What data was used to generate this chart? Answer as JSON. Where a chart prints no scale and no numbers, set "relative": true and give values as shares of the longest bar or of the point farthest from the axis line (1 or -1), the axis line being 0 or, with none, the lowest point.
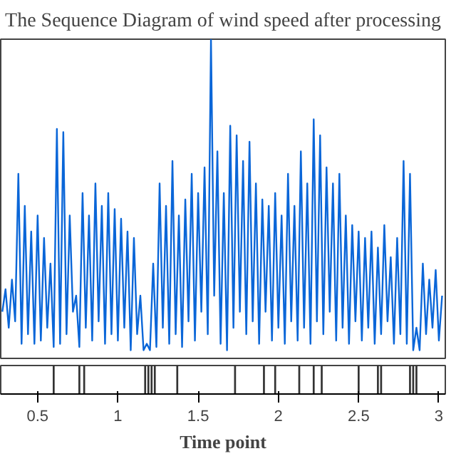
{
  "chart_data": [
    {
      "type": "line",
      "title": "The Sequence Diagram of wind speed after processing",
      "relative": true,
      "tick_labels": false,
      "xlim": [
        0.27,
        3.04
      ],
      "xticks": [
        0.5,
        1,
        1.5,
        2,
        2.5,
        3
      ],
      "x": [
        0.28,
        0.3,
        0.32,
        0.34,
        0.36,
        0.38,
        0.4,
        0.42,
        0.44,
        0.46,
        0.48,
        0.5,
        0.52,
        0.54,
        0.56,
        0.58,
        0.6,
        0.62,
        0.64,
        0.66,
        0.68,
        0.7,
        0.72,
        0.74,
        0.76,
        0.78,
        0.8,
        0.82,
        0.84,
        0.86,
        0.88,
        0.9,
        0.92,
        0.94,
        0.96,
        0.98,
        1.0,
        1.02,
        1.04,
        1.06,
        1.08,
        1.1,
        1.12,
        1.14,
        1.16,
        1.18,
        1.2,
        1.22,
        1.24,
        1.26,
        1.28,
        1.3,
        1.32,
        1.34,
        1.36,
        1.38,
        1.4,
        1.42,
        1.44,
        1.46,
        1.48,
        1.5,
        1.52,
        1.54,
        1.56,
        1.58,
        1.6,
        1.62,
        1.64,
        1.66,
        1.68,
        1.7,
        1.72,
        1.74,
        1.76,
        1.78,
        1.8,
        1.82,
        1.84,
        1.86,
        1.88,
        1.9,
        1.92,
        1.94,
        1.96,
        1.98,
        2.0,
        2.02,
        2.04,
        2.06,
        2.08,
        2.1,
        2.12,
        2.14,
        2.16,
        2.18,
        2.2,
        2.22,
        2.24,
        2.26,
        2.28,
        2.3,
        2.32,
        2.34,
        2.36,
        2.38,
        2.4,
        2.42,
        2.44,
        2.46,
        2.48,
        2.5,
        2.52,
        2.54,
        2.56,
        2.58,
        2.6,
        2.62,
        2.64,
        2.66,
        2.68,
        2.7,
        2.72,
        2.74,
        2.76,
        2.78,
        2.8,
        2.82,
        2.84,
        2.86,
        2.88,
        2.9,
        2.92,
        2.94,
        2.96,
        2.98,
        3.0,
        3.02
      ],
      "series": [
        {
          "color": "#0a66d8",
          "values": [
            0.15,
            0.22,
            0.1,
            0.25,
            0.12,
            0.58,
            0.05,
            0.48,
            0.08,
            0.4,
            0.05,
            0.45,
            0.06,
            0.38,
            0.1,
            0.3,
            0.04,
            0.72,
            0.05,
            0.71,
            0.08,
            0.45,
            0.15,
            0.2,
            0.04,
            0.52,
            0.1,
            0.45,
            0.06,
            0.55,
            0.12,
            0.48,
            0.05,
            0.52,
            0.08,
            0.47,
            0.06,
            0.44,
            0.1,
            0.4,
            0.03,
            0.38,
            0.08,
            0.2,
            0.03,
            0.05,
            0.03,
            0.3,
            0.04,
            0.55,
            0.1,
            0.48,
            0.05,
            0.62,
            0.08,
            0.45,
            0.04,
            0.5,
            0.12,
            0.58,
            0.06,
            0.52,
            0.15,
            0.6,
            0.08,
            1.0,
            0.2,
            0.65,
            0.05,
            0.52,
            0.03,
            0.73,
            0.1,
            0.7,
            0.15,
            0.62,
            0.08,
            0.68,
            0.12,
            0.55,
            0.05,
            0.5,
            0.15,
            0.48,
            0.06,
            0.52,
            0.1,
            0.45,
            0.05,
            0.58,
            0.12,
            0.48,
            0.06,
            0.65,
            0.1,
            0.55,
            0.05,
            0.75,
            0.12,
            0.7,
            0.08,
            0.6,
            0.15,
            0.55,
            0.06,
            0.58,
            0.1,
            0.45,
            0.05,
            0.42,
            0.12,
            0.4,
            0.06,
            0.38,
            0.1,
            0.4,
            0.05,
            0.35,
            0.08,
            0.42,
            0.12,
            0.32,
            0.05,
            0.38,
            0.08,
            0.62,
            0.05,
            0.58,
            0.03,
            0.1,
            0.03,
            0.3,
            0.08,
            0.25,
            0.1,
            0.28,
            0.06,
            0.2
          ]
        }
      ]
    },
    {
      "type": "bar",
      "relative": true,
      "tick_labels": "x",
      "xlabel": "Time point",
      "xlim": [
        0.27,
        3.04
      ],
      "xticks": [
        0.5,
        1,
        1.5,
        2,
        2.5,
        3
      ],
      "color": "#333333",
      "x": [
        0.6,
        0.76,
        0.79,
        1.17,
        1.19,
        1.21,
        1.23,
        1.37,
        1.73,
        1.91,
        1.98,
        2.13,
        2.22,
        2.27,
        2.5,
        2.62,
        2.64,
        2.82,
        2.84,
        2.86
      ],
      "values": [
        1,
        1,
        1,
        1,
        1,
        1,
        1,
        1,
        1,
        1,
        1,
        1,
        1,
        1,
        1,
        1,
        1,
        1,
        1,
        1
      ]
    }
  ]
}
